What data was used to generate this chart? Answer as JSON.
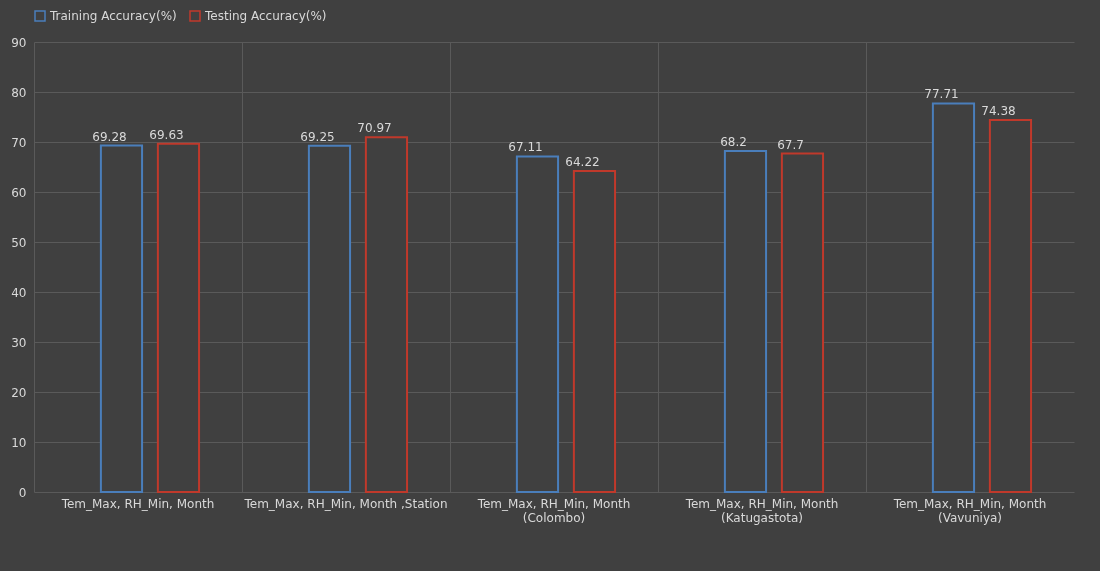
{
  "chart_data": {
    "type": "bar",
    "categories": [
      "Tem_Max, RH_Min, Month",
      "Tem_Max, RH_Min, Month ,Station",
      "Tem_Max, RH_Min, Month\n(Colombo)",
      "Tem_Max, RH_Min, Month\n(Katugastota)",
      "Tem_Max, RH_Min, Month\n(Vavuniya)"
    ],
    "series": [
      {
        "name": "Training Accuracy(%)",
        "color": "#4a7ebb",
        "values": [
          69.28,
          69.25,
          67.11,
          68.2,
          77.71
        ]
      },
      {
        "name": "Testing Accuracy(%)",
        "color": "#c0392b",
        "values": [
          69.63,
          70.97,
          64.22,
          67.7,
          74.38
        ]
      }
    ],
    "ylim": [
      0,
      90
    ],
    "yticks": [
      0,
      10,
      20,
      30,
      40,
      50,
      60,
      70,
      80,
      90
    ],
    "grid": true,
    "legend": "top",
    "data_labels": true
  }
}
